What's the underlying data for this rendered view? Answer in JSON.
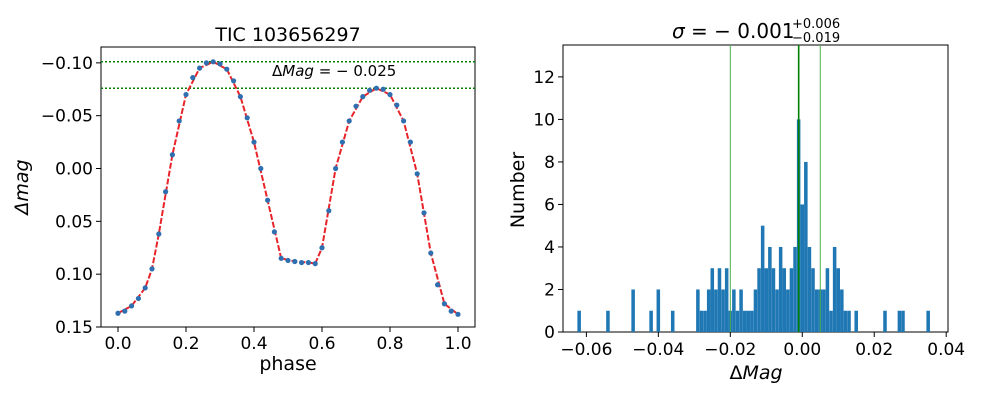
{
  "chart_data": [
    {
      "type": "line",
      "title": "TIC 103656297",
      "xlabel": "phase",
      "ylabel": "Δmag",
      "y_inverted": true,
      "xlim": [
        -0.05,
        1.05
      ],
      "ylim": [
        0.15,
        -0.115
      ],
      "xticks": [
        0.0,
        0.2,
        0.4,
        0.6,
        0.8,
        1.0
      ],
      "xtick_labels": [
        "0.0",
        "0.2",
        "0.4",
        "0.6",
        "0.8",
        "1.0"
      ],
      "yticks": [
        -0.1,
        -0.05,
        0.0,
        0.05,
        0.1,
        0.15
      ],
      "ytick_labels": [
        "−0.10",
        "−0.05",
        "0.00",
        "0.05",
        "0.10",
        "0.15"
      ],
      "annotation": {
        "prefix": "Δ",
        "italic": "Mag",
        "suffix": " = − 0.025"
      },
      "hlines": [
        -0.101,
        -0.076
      ],
      "hline_color": "#008000",
      "series": [
        {
          "style": "points",
          "color": "#2f6fb0",
          "x": [
            0.0,
            0.02,
            0.04,
            0.06,
            0.08,
            0.1,
            0.12,
            0.14,
            0.16,
            0.18,
            0.2,
            0.22,
            0.24,
            0.26,
            0.28,
            0.3,
            0.32,
            0.34,
            0.36,
            0.38,
            0.4,
            0.42,
            0.44,
            0.46,
            0.48,
            0.5,
            0.52,
            0.54,
            0.56,
            0.58,
            0.6,
            0.62,
            0.64,
            0.66,
            0.68,
            0.7,
            0.72,
            0.74,
            0.76,
            0.78,
            0.8,
            0.82,
            0.84,
            0.86,
            0.88,
            0.9,
            0.92,
            0.94,
            0.96,
            0.98,
            1.0
          ],
          "y": [
            0.137,
            0.135,
            0.13,
            0.123,
            0.113,
            0.095,
            0.062,
            0.022,
            -0.013,
            -0.045,
            -0.07,
            -0.086,
            -0.095,
            -0.1,
            -0.101,
            -0.099,
            -0.094,
            -0.083,
            -0.068,
            -0.048,
            -0.025,
            0.0,
            0.03,
            0.06,
            0.085,
            0.087,
            0.088,
            0.089,
            0.089,
            0.09,
            0.075,
            0.04,
            0.0,
            -0.025,
            -0.045,
            -0.059,
            -0.068,
            -0.074,
            -0.076,
            -0.075,
            -0.07,
            -0.06,
            -0.045,
            -0.025,
            0.005,
            0.042,
            0.08,
            0.11,
            0.128,
            0.135,
            0.138
          ]
        },
        {
          "style": "line",
          "color": "#e8242b",
          "x": [
            0.0,
            0.04,
            0.08,
            0.1,
            0.12,
            0.16,
            0.2,
            0.24,
            0.28,
            0.32,
            0.36,
            0.4,
            0.44,
            0.48,
            0.52,
            0.56,
            0.58,
            0.6,
            0.64,
            0.68,
            0.72,
            0.76,
            0.8,
            0.84,
            0.88,
            0.92,
            0.96,
            1.0
          ],
          "y": [
            0.137,
            0.13,
            0.113,
            0.095,
            0.062,
            -0.013,
            -0.07,
            -0.095,
            -0.101,
            -0.094,
            -0.068,
            -0.025,
            0.03,
            0.085,
            0.088,
            0.089,
            0.09,
            0.075,
            0.0,
            -0.045,
            -0.068,
            -0.076,
            -0.07,
            -0.045,
            0.005,
            0.08,
            0.128,
            0.138
          ]
        }
      ]
    },
    {
      "type": "bar",
      "subtype": "histogram",
      "title": {
        "sigma": "σ",
        "eq": " = − 0.001",
        "sup": "+0.006",
        "sub": "−0.019"
      },
      "xlabel": {
        "prefix": "Δ",
        "italic": "Mag"
      },
      "ylabel": "Number",
      "xlim": [
        -0.0665,
        0.0405
      ],
      "ylim": [
        0,
        13.5
      ],
      "xticks": [
        -0.06,
        -0.04,
        -0.02,
        0.0,
        0.02,
        0.04
      ],
      "xtick_labels": [
        "−0.06",
        "−0.04",
        "−0.02",
        "0.00",
        "0.02",
        "0.04"
      ],
      "yticks": [
        0,
        2,
        4,
        6,
        8,
        10,
        12
      ],
      "ytick_labels": [
        "0",
        "2",
        "4",
        "6",
        "8",
        "10",
        "12"
      ],
      "bar_color": "#1f77b4",
      "vlines": [
        {
          "x": -0.001,
          "color": "#008000"
        },
        {
          "x": -0.02,
          "color": "#4caf50"
        },
        {
          "x": 0.005,
          "color": "#4caf50"
        }
      ],
      "bin_width": 0.00098,
      "bins_left": [
        -0.0625,
        -0.0545,
        -0.0475,
        -0.0425,
        -0.0405,
        -0.0365,
        -0.0295,
        -0.0285,
        -0.0275,
        -0.0265,
        -0.0255,
        -0.0245,
        -0.0235,
        -0.0225,
        -0.0215,
        -0.0205,
        -0.0195,
        -0.0185,
        -0.0175,
        -0.0165,
        -0.0155,
        -0.0145,
        -0.0135,
        -0.0125,
        -0.0115,
        -0.0105,
        -0.0095,
        -0.0085,
        -0.0075,
        -0.0065,
        -0.0055,
        -0.0045,
        -0.0035,
        -0.0025,
        -0.0015,
        -0.0005,
        0.0005,
        0.0015,
        0.0025,
        0.0035,
        0.0045,
        0.0055,
        0.0065,
        0.0075,
        0.0085,
        0.0095,
        0.0105,
        0.0115,
        0.0125,
        0.0145,
        0.0225,
        0.0265,
        0.0275,
        0.0345
      ],
      "counts": [
        1,
        1,
        2,
        1,
        2,
        1,
        2,
        1,
        1,
        2,
        3,
        2,
        3,
        2,
        3,
        1,
        2,
        1,
        2,
        1,
        1,
        1,
        2,
        3,
        5,
        3,
        4,
        3,
        2,
        4,
        3,
        2,
        3,
        4,
        10,
        6,
        8,
        4,
        3,
        2,
        2,
        2,
        3,
        1,
        4,
        3,
        2,
        1,
        1,
        1,
        1,
        1,
        1,
        1
      ]
    }
  ]
}
